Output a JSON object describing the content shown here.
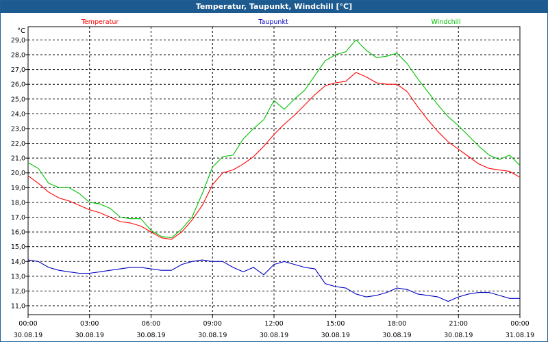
{
  "window": {
    "title": "Temperatur, Taupunkt, Windchill [°C]"
  },
  "chart_data": {
    "type": "line",
    "title": "Temperatur, Taupunkt, Windchill [°C]",
    "ylabel": "°C",
    "xlabel": "",
    "ylim": [
      10.4,
      29.9
    ],
    "xlim": [
      0,
      24
    ],
    "grid": true,
    "legend": "top",
    "x_ticks": [
      {
        "x": 0,
        "time": "00:00",
        "date": "30.08.19"
      },
      {
        "x": 3,
        "time": "03:00",
        "date": "30.08.19"
      },
      {
        "x": 6,
        "time": "06:00",
        "date": "30.08.19"
      },
      {
        "x": 9,
        "time": "09:00",
        "date": "30.08.19"
      },
      {
        "x": 12,
        "time": "12:00",
        "date": "30.08.19"
      },
      {
        "x": 15,
        "time": "15:00",
        "date": "30.08.19"
      },
      {
        "x": 18,
        "time": "18:00",
        "date": "30.08.19"
      },
      {
        "x": 21,
        "time": "21:00",
        "date": "30.08.19"
      },
      {
        "x": 24,
        "time": "00:00",
        "date": "31.08.19"
      }
    ],
    "y_ticks": [
      "11,0",
      "12,0",
      "13,0",
      "14,0",
      "15,0",
      "16,0",
      "17,0",
      "18,0",
      "19,0",
      "20,0",
      "21,0",
      "22,0",
      "23,0",
      "24,0",
      "25,0",
      "26,0",
      "27,0",
      "28,0",
      "29,0"
    ],
    "series": [
      {
        "name": "Temperatur",
        "color": "#ff0000",
        "x": [
          0,
          0.5,
          1,
          1.5,
          2,
          2.5,
          3,
          3.5,
          4,
          4.5,
          5,
          5.5,
          6,
          6.5,
          7,
          7.5,
          8,
          8.5,
          9,
          9.5,
          10,
          10.5,
          11,
          11.5,
          12,
          12.5,
          13,
          13.5,
          14,
          14.5,
          15,
          15.5,
          16,
          16.5,
          17,
          17.5,
          18,
          18.5,
          19,
          19.5,
          20,
          20.5,
          21,
          21.5,
          22,
          22.5,
          23,
          23.5,
          24
        ],
        "values": [
          19.8,
          19.3,
          18.7,
          18.3,
          18.1,
          17.8,
          17.5,
          17.3,
          17.0,
          16.7,
          16.6,
          16.4,
          16.0,
          15.6,
          15.5,
          16.0,
          16.8,
          17.8,
          19.2,
          20.0,
          20.2,
          20.6,
          21.1,
          21.8,
          22.6,
          23.3,
          23.9,
          24.6,
          25.3,
          25.9,
          26.1,
          26.2,
          26.8,
          26.5,
          26.1,
          26.0,
          26.0,
          25.5,
          24.5,
          23.6,
          22.8,
          22.1,
          21.6,
          21.1,
          20.6,
          20.3,
          20.2,
          20.1,
          19.7
        ]
      },
      {
        "name": "Taupunkt",
        "color": "#0000c0",
        "x": [
          0,
          0.5,
          1,
          1.5,
          2,
          2.5,
          3,
          3.5,
          4,
          4.5,
          5,
          5.5,
          6,
          6.5,
          7,
          7.5,
          8,
          8.5,
          9,
          9.5,
          10,
          10.5,
          11,
          11.5,
          12,
          12.5,
          13,
          13.5,
          14,
          14.5,
          15,
          15.5,
          16,
          16.5,
          17,
          17.5,
          18,
          18.5,
          19,
          19.5,
          20,
          20.5,
          21,
          21.5,
          22,
          22.5,
          23,
          23.5,
          24
        ],
        "values": [
          14.1,
          14.0,
          13.6,
          13.4,
          13.3,
          13.2,
          13.2,
          13.3,
          13.4,
          13.5,
          13.6,
          13.6,
          13.5,
          13.4,
          13.4,
          13.8,
          14.0,
          14.1,
          14.0,
          14.0,
          13.6,
          13.3,
          13.6,
          13.1,
          13.8,
          14.0,
          13.8,
          13.6,
          13.5,
          12.5,
          12.3,
          12.2,
          11.8,
          11.6,
          11.7,
          11.9,
          12.2,
          12.1,
          11.8,
          11.7,
          11.6,
          11.3,
          11.6,
          11.8,
          11.9,
          11.9,
          11.7,
          11.5,
          11.5
        ]
      },
      {
        "name": "Windchill",
        "color": "#00c000",
        "x": [
          0,
          0.5,
          1,
          1.5,
          2,
          2.5,
          3,
          3.5,
          4,
          4.5,
          5,
          5.5,
          6,
          6.5,
          7,
          7.5,
          8,
          8.5,
          9,
          9.5,
          10,
          10.5,
          11,
          11.5,
          12,
          12.5,
          13,
          13.5,
          14,
          14.5,
          15,
          15.5,
          16,
          16.5,
          17,
          17.5,
          18,
          18.5,
          19,
          19.5,
          20,
          20.5,
          21,
          21.5,
          22,
          22.5,
          23,
          23.5,
          24
        ],
        "values": [
          20.7,
          20.3,
          19.3,
          19.0,
          19.0,
          18.6,
          18.0,
          17.9,
          17.6,
          17.0,
          16.9,
          16.9,
          16.1,
          15.7,
          15.6,
          16.2,
          17.0,
          18.6,
          20.4,
          21.1,
          21.2,
          22.3,
          23.0,
          23.6,
          24.9,
          24.3,
          25.0,
          25.6,
          26.6,
          27.6,
          28.0,
          28.2,
          29.0,
          28.3,
          27.8,
          27.9,
          28.1,
          27.4,
          26.4,
          25.5,
          24.6,
          23.8,
          23.2,
          22.5,
          21.8,
          21.2,
          20.9,
          21.2,
          20.5
        ]
      }
    ]
  }
}
